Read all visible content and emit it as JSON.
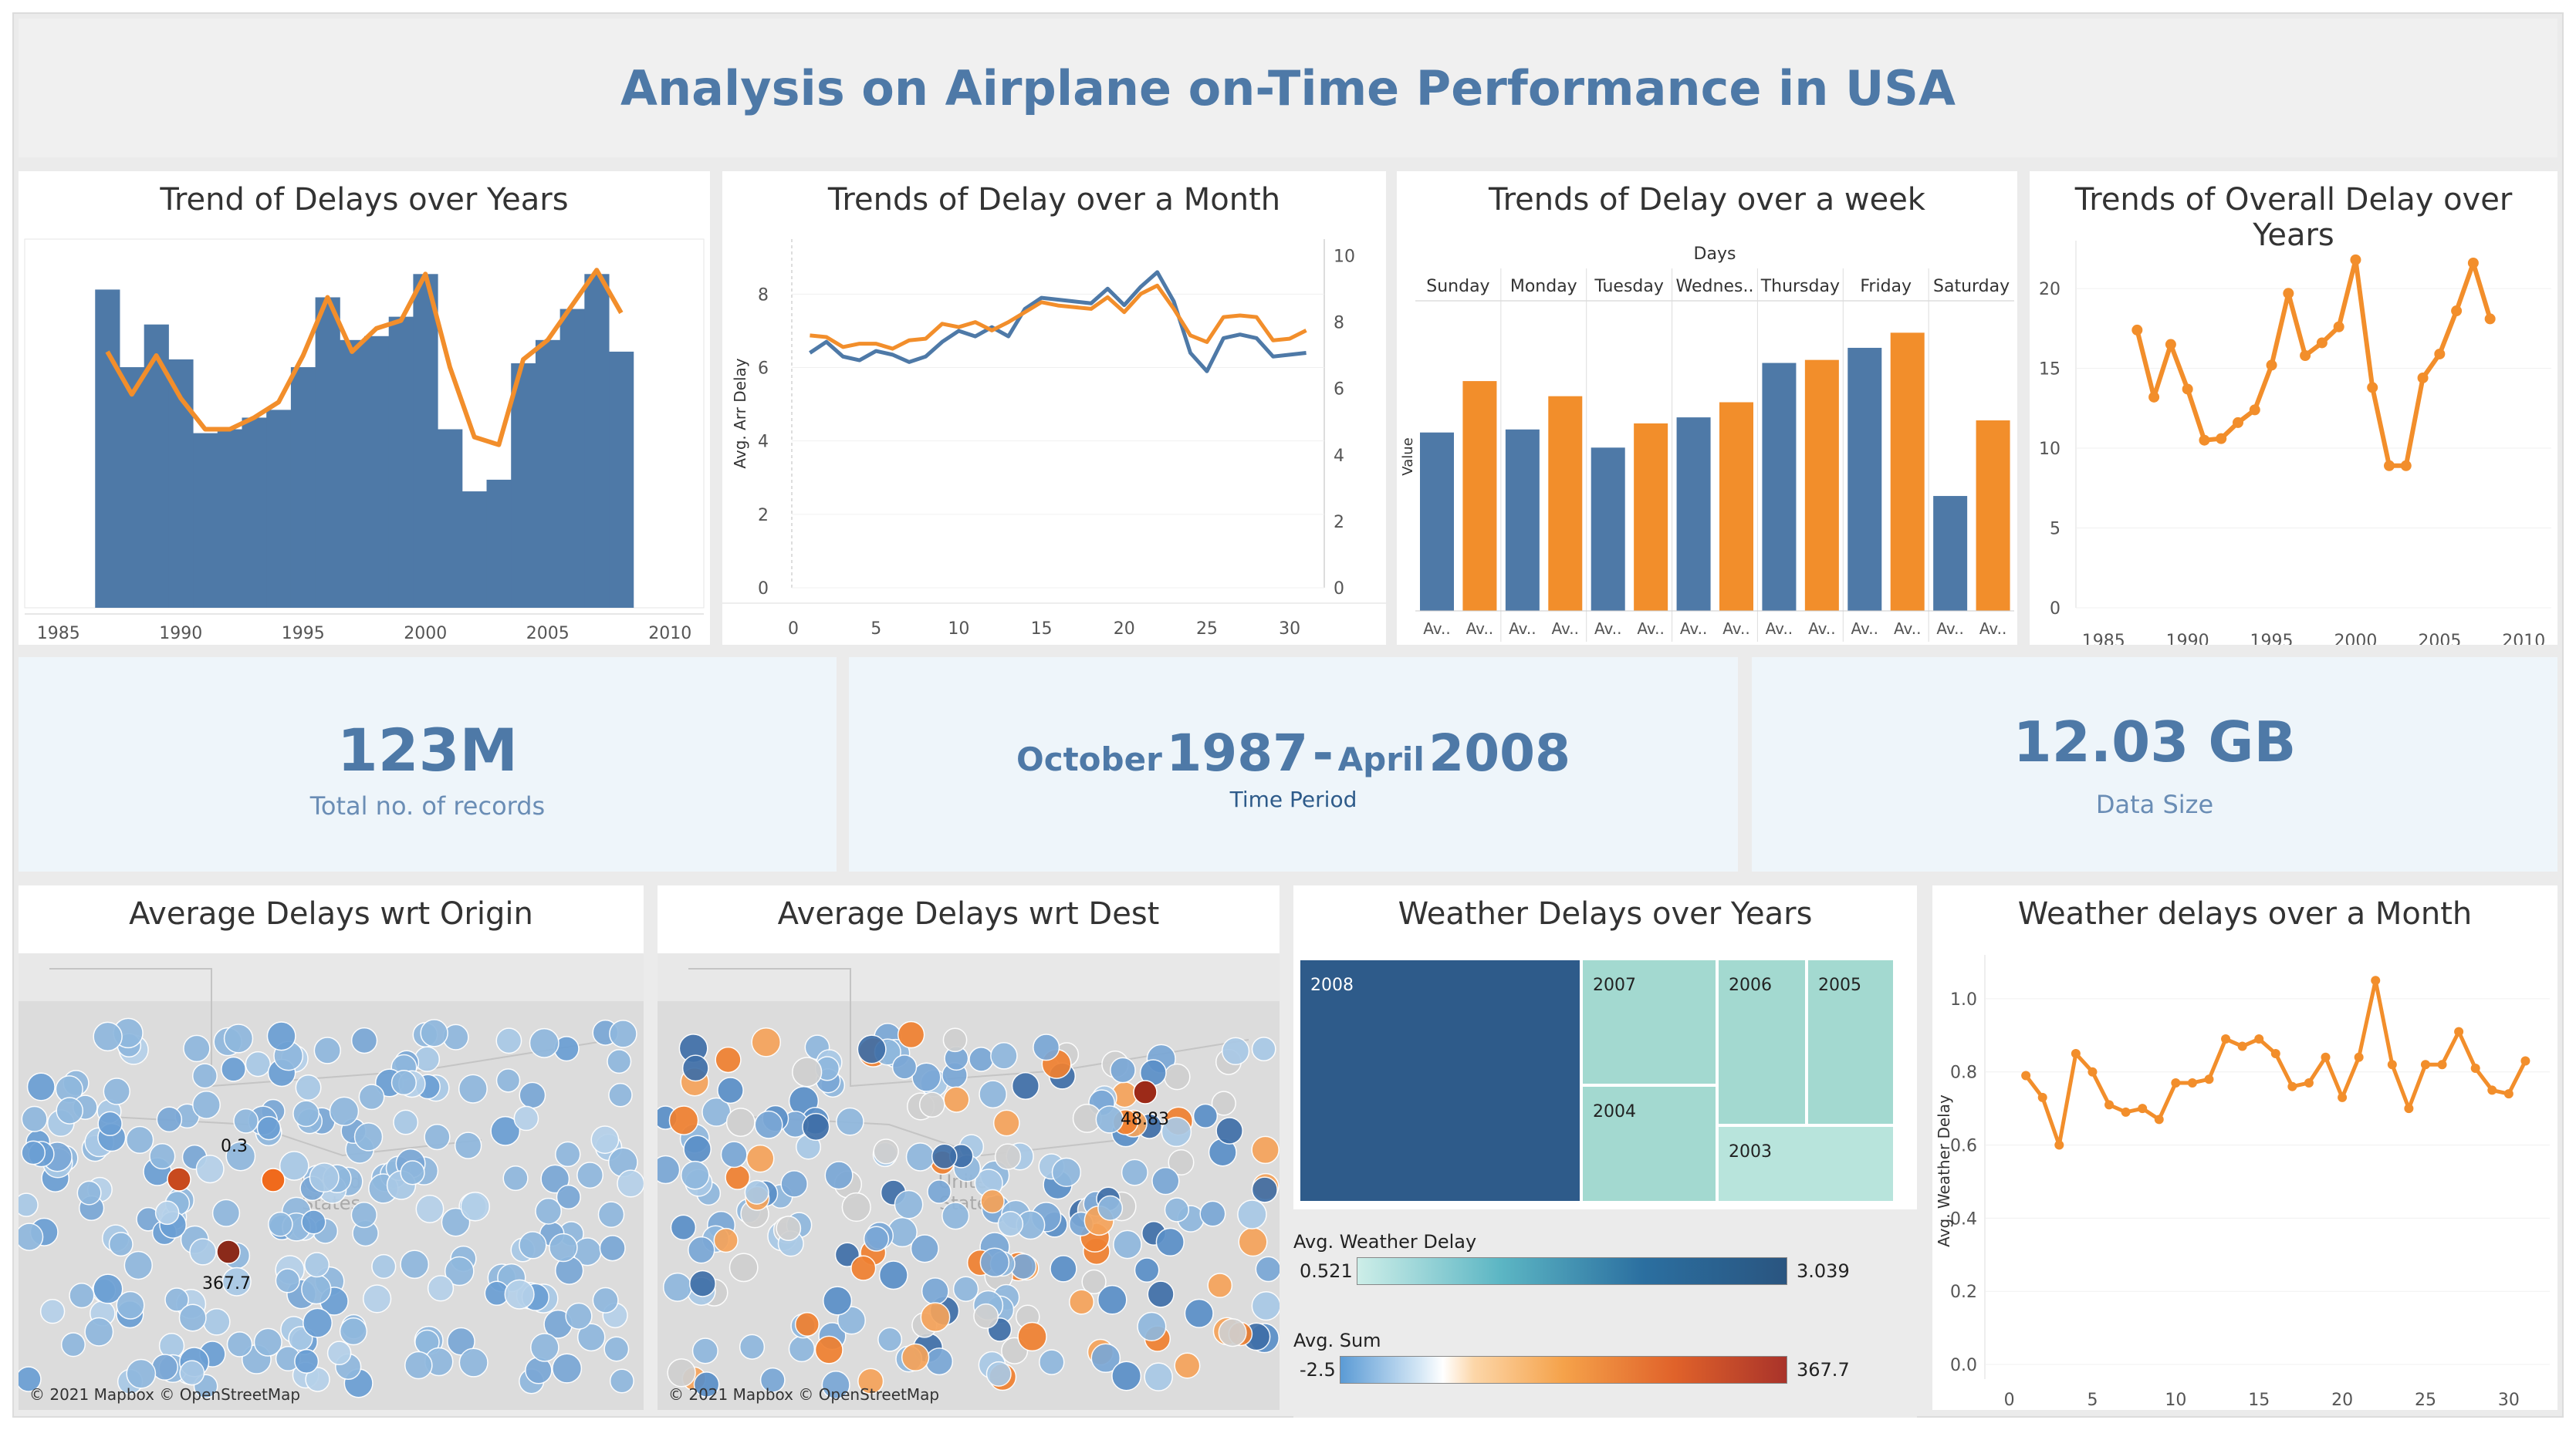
{
  "dashboard": {
    "title": "Analysis on Airplane on-Time Performance in USA"
  },
  "colors": {
    "blue": "#4e79a7",
    "orange": "#f28e2b",
    "teal_light": "#a3d9d0",
    "dark_blue": "#2e5b8a"
  },
  "panels": {
    "years": "Trend of Delays over Years",
    "month": "Trends of Delay over a Month",
    "week": "Trends of Delay over a week",
    "overall": "Trends of Overall Delay over Years",
    "origin": "Average Delays wrt Origin",
    "dest": "Average Delays wrt Dest",
    "weather_years": "Weather Delays over Years",
    "weather_month": "Weather delays over a Month"
  },
  "kpis": {
    "records_value": "123M",
    "records_label": "Total no. of records",
    "period_m1": "October",
    "period_y1": "1987",
    "period_dash": "-",
    "period_m2": "April",
    "period_y2": "2008",
    "period_label": "Time Period",
    "size_value": "12.03 GB",
    "size_label": "Data Size"
  },
  "maps": {
    "origin_label_a": "0.3",
    "origin_label_b": "367.7",
    "dest_label": "48.83",
    "attribution": "© 2021 Mapbox © OpenStreetMap",
    "country_label_1": "United",
    "country_label_2": "States"
  },
  "legends": {
    "weather_title": "Avg. Weather Delay",
    "weather_min": "0.521",
    "weather_max": "3.039",
    "sum_title": "Avg. Sum",
    "sum_min": "-2.5",
    "sum_max": "367.7"
  },
  "chart_data": [
    {
      "id": "years",
      "type": "bar",
      "title": "Trend of Delays over Years",
      "x": [
        1987,
        1988,
        1989,
        1990,
        1991,
        1992,
        1993,
        1994,
        1995,
        1996,
        1997,
        1998,
        1999,
        2000,
        2001,
        2002,
        2003,
        2004,
        2005,
        2006,
        2007,
        2008
      ],
      "series": [
        {
          "kind": "bar",
          "values": [
            8.2,
            6.2,
            7.3,
            6.4,
            4.5,
            4.6,
            4.9,
            5.1,
            6.2,
            8.0,
            6.9,
            7.0,
            7.5,
            8.6,
            4.6,
            3.0,
            3.3,
            6.3,
            6.9,
            7.7,
            8.6,
            6.6
          ]
        },
        {
          "kind": "line",
          "values": [
            6.6,
            5.5,
            6.5,
            5.4,
            4.6,
            4.6,
            4.9,
            5.3,
            6.5,
            8.0,
            6.6,
            7.2,
            7.4,
            8.6,
            6.2,
            4.4,
            4.2,
            6.4,
            6.9,
            7.8,
            8.7,
            7.6
          ]
        }
      ],
      "xticks": [
        1985,
        1990,
        1995,
        2000,
        2005,
        2010
      ],
      "xlim": [
        1984,
        2011
      ],
      "ylim": [
        0,
        9.5
      ]
    },
    {
      "id": "month",
      "type": "line",
      "title": "Trends of Delay over a Month",
      "ylabel": "Avg. Arr Delay",
      "x": [
        1,
        2,
        3,
        4,
        5,
        6,
        7,
        8,
        9,
        10,
        11,
        12,
        13,
        14,
        15,
        16,
        17,
        18,
        19,
        20,
        21,
        22,
        23,
        24,
        25,
        26,
        27,
        28,
        29,
        30,
        31
      ],
      "series": [
        {
          "name": "blue",
          "axis": "left",
          "values": [
            6.4,
            6.7,
            6.3,
            6.2,
            6.45,
            6.35,
            6.15,
            6.3,
            6.7,
            7.0,
            6.85,
            7.1,
            6.85,
            7.6,
            7.9,
            7.85,
            7.8,
            7.75,
            8.15,
            7.7,
            8.2,
            8.6,
            7.8,
            6.4,
            5.9,
            6.8,
            6.9,
            6.8,
            6.3,
            6.35,
            6.4
          ]
        },
        {
          "name": "orange",
          "axis": "right",
          "values": [
            7.6,
            7.55,
            7.25,
            7.35,
            7.35,
            7.2,
            7.45,
            7.5,
            7.95,
            7.85,
            8.0,
            7.75,
            8.0,
            8.3,
            8.6,
            8.5,
            8.45,
            8.4,
            8.75,
            8.3,
            8.85,
            9.1,
            8.4,
            7.6,
            7.4,
            8.15,
            8.2,
            8.15,
            7.45,
            7.5,
            7.75
          ]
        }
      ],
      "xticks": [
        0,
        5,
        10,
        15,
        20,
        25,
        30
      ],
      "yticks_left": [
        0,
        2,
        4,
        6,
        8
      ],
      "yticks_right": [
        0,
        2,
        4,
        6,
        8,
        10
      ],
      "ylim_left": [
        0,
        9.5
      ],
      "ylim_right": [
        0,
        10.5
      ]
    },
    {
      "id": "week",
      "type": "bar",
      "title": "Trends of Delay over a week",
      "header": "Days",
      "ylabel": "Value",
      "categories": [
        "Sunday",
        "Monday",
        "Tuesday",
        "Wednes..",
        "Thursday",
        "Friday",
        "Saturday"
      ],
      "sublabels": [
        "Av..",
        "Av.."
      ],
      "series": [
        {
          "name": "blue",
          "values": [
            5.9,
            6.0,
            5.4,
            6.4,
            8.2,
            8.7,
            3.8
          ]
        },
        {
          "name": "orange",
          "values": [
            7.6,
            7.1,
            6.2,
            6.9,
            8.3,
            9.2,
            6.3
          ]
        }
      ],
      "ylim": [
        0,
        10
      ]
    },
    {
      "id": "overall",
      "type": "line",
      "title": "Trends of Overall Delay over Years",
      "x": [
        1987,
        1988,
        1989,
        1990,
        1991,
        1992,
        1993,
        1994,
        1995,
        1996,
        1997,
        1998,
        1999,
        2000,
        2001,
        2002,
        2003,
        2004,
        2005,
        2006,
        2007,
        2008
      ],
      "values": [
        17.4,
        13.2,
        16.5,
        13.7,
        10.5,
        10.6,
        11.6,
        12.4,
        15.2,
        19.7,
        15.8,
        16.6,
        17.6,
        21.8,
        13.8,
        8.9,
        8.9,
        14.4,
        15.9,
        18.6,
        21.6,
        18.1
      ],
      "xticks": [
        1985,
        1990,
        1995,
        2000,
        2005,
        2010
      ],
      "yticks": [
        0,
        5,
        10,
        15,
        20
      ],
      "xlim": [
        1984,
        2011
      ],
      "ylim": [
        0,
        23
      ]
    },
    {
      "id": "weather_years",
      "type": "treemap",
      "title": "Weather Delays over Years",
      "labels": [
        "2008",
        "2007",
        "2006",
        "2005",
        "2004",
        "2003"
      ]
    },
    {
      "id": "weather_month",
      "type": "line",
      "title": "Weather delays over a Month",
      "ylabel": "Avg. Weather Delay",
      "x": [
        1,
        2,
        3,
        4,
        5,
        6,
        7,
        8,
        9,
        10,
        11,
        12,
        13,
        14,
        15,
        16,
        17,
        18,
        19,
        20,
        21,
        22,
        23,
        24,
        25,
        26,
        27,
        28,
        29,
        30,
        31
      ],
      "values": [
        0.79,
        0.73,
        0.6,
        0.85,
        0.8,
        0.71,
        0.69,
        0.7,
        0.67,
        0.77,
        0.77,
        0.78,
        0.89,
        0.87,
        0.89,
        0.85,
        0.76,
        0.77,
        0.84,
        0.73,
        0.84,
        1.05,
        0.82,
        0.7,
        0.82,
        0.82,
        0.91,
        0.81,
        0.75,
        0.74,
        0.83
      ],
      "xticks": [
        0,
        5,
        10,
        15,
        20,
        25,
        30
      ],
      "yticks": [
        "0.0",
        "0.2",
        "0.4",
        "0.6",
        "0.8",
        "1.0"
      ],
      "xlim": [
        -1,
        32
      ],
      "ylim": [
        -0.04,
        1.12
      ]
    }
  ]
}
